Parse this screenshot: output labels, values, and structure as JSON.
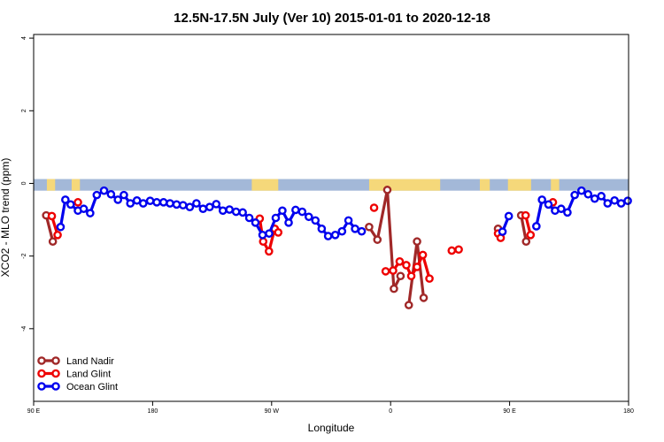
{
  "chart_data": {
    "type": "line",
    "title": "12.5N-17.5N July (Ver 10)   2015-01-01 to 2020-12-18",
    "xlabel": "Longitude",
    "ylabel": "XCO2 - MLO trend (ppm)",
    "xlim": [
      0,
      360
    ],
    "ylim": [
      -6.0,
      4.1
    ],
    "x_ticks": [
      {
        "value": 0,
        "label": "90 E"
      },
      {
        "value": 72,
        "label": "180"
      },
      {
        "value": 144,
        "label": "90 W"
      },
      {
        "value": 216,
        "label": "0"
      },
      {
        "value": 288,
        "label": "90 E"
      },
      {
        "value": 360,
        "label": "180"
      }
    ],
    "y_ticks": [
      {
        "value": 4,
        "label": "4"
      },
      {
        "value": 2,
        "label": "2"
      },
      {
        "value": 0,
        "label": "0"
      },
      {
        "value": -2,
        "label": "-2"
      },
      {
        "value": -4,
        "label": "-4"
      }
    ],
    "land_mask_band": {
      "y_range": [
        -0.2,
        0.12
      ],
      "ocean_color": "#a3b8d8",
      "land_color": "#f5d87a",
      "land_segments": [
        [
          8,
          13
        ],
        [
          23,
          28
        ],
        [
          132,
          148
        ],
        [
          203,
          246
        ],
        [
          270,
          276
        ],
        [
          287,
          301
        ],
        [
          313,
          318
        ]
      ]
    },
    "legend_position": "bottom-left",
    "series": [
      {
        "name": "Land Nadir",
        "color": "#a02828",
        "segments": [
          [
            [
              7.6,
              -0.88
            ],
            [
              11.6,
              -1.6
            ]
          ],
          [
            [
              203,
              -1.2
            ],
            [
              208,
              -1.55
            ],
            [
              214,
              -0.18
            ],
            [
              218,
              -2.9
            ],
            [
              222,
              -2.55
            ]
          ],
          [
            [
              227,
              -3.35
            ],
            [
              232,
              -1.6
            ],
            [
              236,
              -3.15
            ]
          ],
          [
            [
              281,
              -1.25
            ]
          ],
          [
            [
              295,
              -0.88
            ],
            [
              298,
              -1.6
            ]
          ]
        ]
      },
      {
        "name": "Land Glint",
        "color": "#ee0000",
        "segments": [
          [
            [
              11,
              -0.9
            ],
            [
              14.5,
              -1.42
            ]
          ],
          [
            [
              26.8,
              -0.52
            ]
          ],
          [
            [
              136.8,
              -0.97
            ],
            [
              138.9,
              -1.6
            ],
            [
              142.4,
              -1.87
            ],
            [
              145.9,
              -1.25
            ],
            [
              148,
              -1.35
            ]
          ],
          [
            [
              206,
              -0.67
            ]
          ],
          [
            [
              213,
              -2.42
            ],
            [
              217.5,
              -2.4
            ],
            [
              221.5,
              -2.15
            ],
            [
              225.5,
              -2.25
            ],
            [
              228.5,
              -2.55
            ],
            [
              232,
              -2.3
            ],
            [
              235.5,
              -1.97
            ],
            [
              239.5,
              -2.62
            ]
          ],
          [
            [
              253,
              -1.85
            ]
          ],
          [
            [
              257.2,
              -1.82
            ]
          ],
          [
            [
              281,
              -1.38
            ],
            [
              282.6,
              -1.5
            ]
          ],
          [
            [
              297.7,
              -0.88
            ],
            [
              300.7,
              -1.42
            ]
          ],
          [
            [
              314.2,
              -0.52
            ]
          ]
        ]
      },
      {
        "name": "Ocean Glint",
        "color": "#0000ee",
        "segments": [
          [
            [
              16.3,
              -1.2
            ],
            [
              19.2,
              -0.45
            ],
            [
              22.4,
              -0.58
            ],
            [
              26.8,
              -0.75
            ],
            [
              30.3,
              -0.7
            ],
            [
              34.2,
              -0.82
            ],
            [
              38.2,
              -0.32
            ],
            [
              42.6,
              -0.2
            ],
            [
              46.8,
              -0.3
            ],
            [
              51,
              -0.45
            ],
            [
              54.6,
              -0.32
            ],
            [
              58.5,
              -0.55
            ],
            [
              62.5,
              -0.47
            ],
            [
              66.3,
              -0.55
            ],
            [
              70.5,
              -0.48
            ],
            [
              74.5,
              -0.52
            ],
            [
              78.6,
              -0.52
            ],
            [
              82.5,
              -0.55
            ],
            [
              86.5,
              -0.58
            ],
            [
              90.4,
              -0.6
            ],
            [
              94.5,
              -0.65
            ],
            [
              98.5,
              -0.55
            ],
            [
              102.5,
              -0.7
            ],
            [
              106.5,
              -0.65
            ],
            [
              110.5,
              -0.57
            ],
            [
              114.5,
              -0.75
            ],
            [
              118.5,
              -0.72
            ],
            [
              122.5,
              -0.78
            ],
            [
              126.5,
              -0.8
            ],
            [
              130.5,
              -0.95
            ],
            [
              134.2,
              -1.08
            ],
            [
              138.5,
              -1.42
            ],
            [
              142.5,
              -1.38
            ],
            [
              146.5,
              -0.95
            ],
            [
              150.5,
              -0.75
            ],
            [
              154.3,
              -1.08
            ],
            [
              158.5,
              -0.73
            ],
            [
              162.5,
              -0.78
            ],
            [
              166.5,
              -0.92
            ],
            [
              170.5,
              -1.02
            ],
            [
              174.3,
              -1.25
            ],
            [
              178.2,
              -1.45
            ],
            [
              182.5,
              -1.42
            ],
            [
              186.6,
              -1.32
            ],
            [
              190.5,
              -1.02
            ],
            [
              194.5,
              -1.25
            ],
            [
              198.5,
              -1.32
            ]
          ],
          [
            [
              283.7,
              -1.33
            ],
            [
              287.5,
              -0.9
            ]
          ],
          [
            [
              304.2,
              -1.18
            ],
            [
              307.6,
              -0.45
            ],
            [
              311.5,
              -0.58
            ],
            [
              315.5,
              -0.75
            ],
            [
              319.2,
              -0.7
            ],
            [
              323,
              -0.8
            ],
            [
              327.4,
              -0.32
            ],
            [
              331.5,
              -0.2
            ],
            [
              335.5,
              -0.3
            ],
            [
              339.5,
              -0.42
            ],
            [
              343.5,
              -0.35
            ],
            [
              347.3,
              -0.55
            ],
            [
              351.5,
              -0.47
            ],
            [
              355.5,
              -0.55
            ],
            [
              359.5,
              -0.48
            ]
          ]
        ]
      }
    ]
  }
}
